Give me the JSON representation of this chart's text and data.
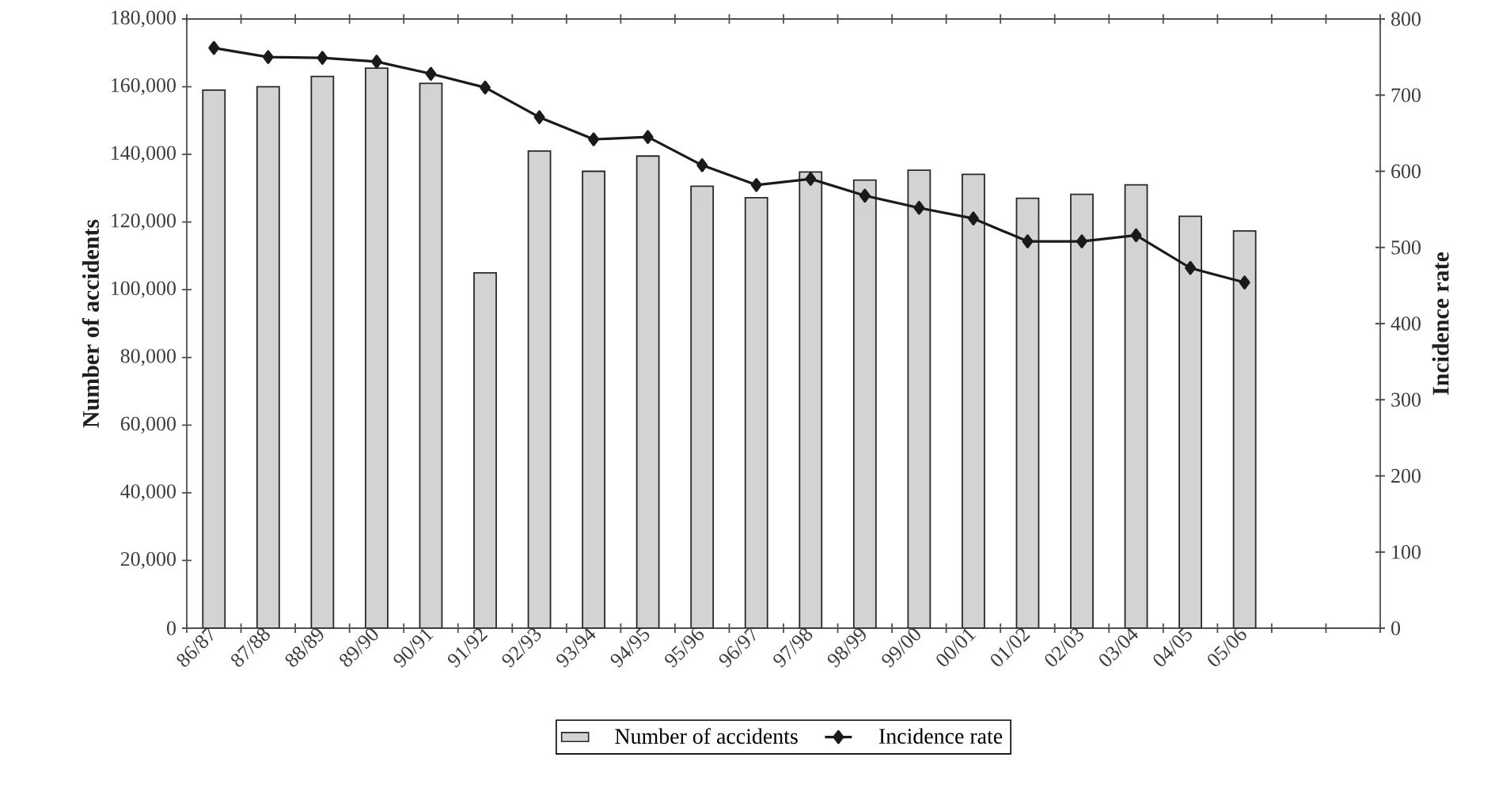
{
  "chart_data": {
    "type": "bar",
    "categories": [
      "86/87",
      "87/88",
      "88/89",
      "89/90",
      "90/91",
      "91/92",
      "92/93",
      "93/94",
      "94/95",
      "95/96",
      "96/97",
      "97/98",
      "98/99",
      "99/00",
      "00/01",
      "01/02",
      "02/03",
      "03/04",
      "04/05",
      "05/06",
      null,
      null
    ],
    "series": [
      {
        "name": "Number of accidents",
        "color": "#d3d3d3",
        "values": [
          159000,
          160000,
          163000,
          165500,
          161000,
          105000,
          141000,
          135000,
          139500,
          130600,
          127200,
          134800,
          132400,
          135300,
          134100,
          127000,
          128200,
          131000,
          121700,
          117400,
          null,
          null
        ]
      },
      {
        "name": "Incidence rate",
        "type": "line",
        "axis": "y2",
        "color": "#1a1a1a",
        "marker": "diamond",
        "values": [
          762,
          750,
          749,
          744,
          728,
          710,
          671,
          642,
          645,
          608,
          582,
          590,
          568,
          552,
          538,
          508,
          508,
          516,
          473,
          454,
          null,
          null
        ]
      }
    ],
    "ylabel": "Number of accidents",
    "y2label": "Incidence rate",
    "ylim": [
      0,
      180000
    ],
    "yticks": [
      {
        "value": 0,
        "label": "0"
      },
      {
        "value": 20000,
        "label": "20,000"
      },
      {
        "value": 40000,
        "label": "40,000"
      },
      {
        "value": 60000,
        "label": "60,000"
      },
      {
        "value": 80000,
        "label": "80,000"
      },
      {
        "value": 100000,
        "label": "100,000"
      },
      {
        "value": 120000,
        "label": "120,000"
      },
      {
        "value": 140000,
        "label": "140,000"
      },
      {
        "value": 160000,
        "label": "160,000"
      },
      {
        "value": 180000,
        "label": "180,000"
      }
    ],
    "y2lim": [
      0,
      800
    ],
    "y2ticks": [
      0,
      100,
      200,
      300,
      400,
      500,
      600,
      700,
      800
    ],
    "legend": "bottom"
  }
}
